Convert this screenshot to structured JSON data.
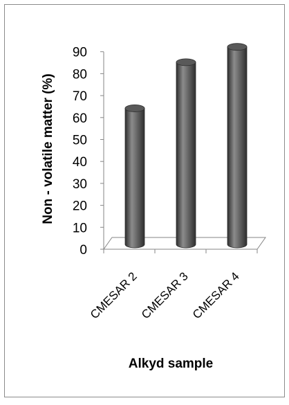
{
  "chart_data": {
    "type": "bar",
    "style": "3d-cylinder",
    "categories": [
      "CMESAR 2",
      "CMESAR 3",
      "CMESAR 4"
    ],
    "values": [
      62,
      83,
      90
    ],
    "xlabel": "Alkyd sample",
    "ylabel": "Non - volatile matter (%)",
    "ylim": [
      0,
      90
    ],
    "yticks": [
      "0",
      "10",
      "20",
      "30",
      "40",
      "50",
      "60",
      "70",
      "80",
      "90"
    ],
    "grid": false,
    "legend": false,
    "colors": {
      "bar": "#595959",
      "bar_highlight": "#8c8c8c",
      "bar_shadow": "#2e2e2e",
      "floor": "#ffffff",
      "axis": "#868686",
      "border": "#8a8a8a"
    }
  }
}
